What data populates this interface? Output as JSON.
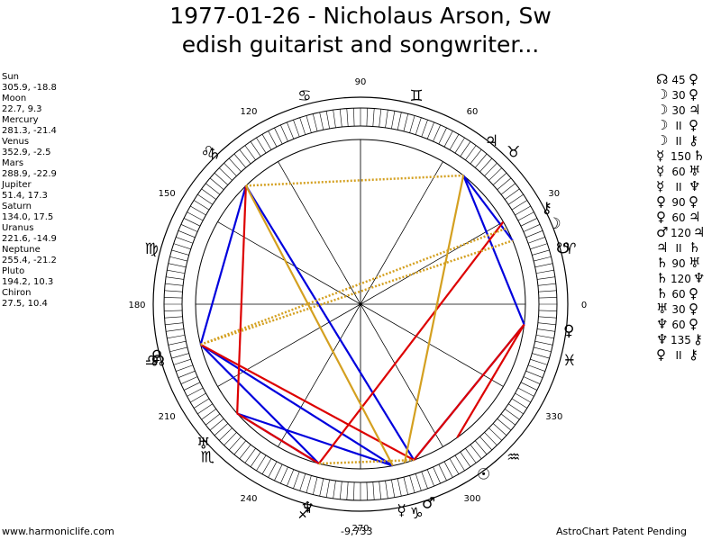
{
  "title": {
    "line1": "1977-01-26 - Nicholaus Arson, Sw",
    "line2": "edish guitarist and songwriter..."
  },
  "planet_positions": [
    {
      "name": "Sun",
      "value": "305.9, -18.8"
    },
    {
      "name": "Moon",
      "value": "22.7, 9.3"
    },
    {
      "name": "Mercury",
      "value": "281.3, -21.4"
    },
    {
      "name": "Venus",
      "value": "352.9, -2.5"
    },
    {
      "name": "Mars",
      "value": "288.9, -22.9"
    },
    {
      "name": "Jupiter",
      "value": "51.4, 17.3"
    },
    {
      "name": "Saturn",
      "value": "134.0, 17.5"
    },
    {
      "name": "Uranus",
      "value": "221.6, -14.9"
    },
    {
      "name": "Neptune",
      "value": "255.4, -21.2"
    },
    {
      "name": "Pluto",
      "value": "194.2, 10.3"
    },
    {
      "name": "Chiron",
      "value": "27.5, 10.4"
    }
  ],
  "aspects": [
    {
      "a": "☊",
      "v": "45",
      "b": "♀"
    },
    {
      "a": "☽",
      "v": "30",
      "b": "♀"
    },
    {
      "a": "☽",
      "v": "30",
      "b": "♃"
    },
    {
      "a": "☽",
      "v": "II",
      "b": "♀"
    },
    {
      "a": "☽",
      "v": "II",
      "b": "⚷"
    },
    {
      "a": "☿",
      "v": "150",
      "b": "♄"
    },
    {
      "a": "☿",
      "v": "60",
      "b": "♅"
    },
    {
      "a": "☿",
      "v": "II",
      "b": "♆"
    },
    {
      "a": "♀",
      "v": "90",
      "b": "♀"
    },
    {
      "a": "♀",
      "v": "60",
      "b": "♃"
    },
    {
      "a": "♂",
      "v": "120",
      "b": "♃"
    },
    {
      "a": "♃",
      "v": "II",
      "b": "♄"
    },
    {
      "a": "♄",
      "v": "90",
      "b": "♅"
    },
    {
      "a": "♄",
      "v": "120",
      "b": "♆"
    },
    {
      "a": "♄",
      "v": "60",
      "b": "♀"
    },
    {
      "a": "♅",
      "v": "30",
      "b": "♀"
    },
    {
      "a": "♆",
      "v": "60",
      "b": "♀"
    },
    {
      "a": "♆",
      "v": "135",
      "b": "⚷"
    },
    {
      "a": "♀",
      "v": "II",
      "b": "⚷"
    }
  ],
  "wheel": {
    "degree_labels": [
      {
        "text": "0",
        "deg": 0
      },
      {
        "text": "30",
        "deg": 30
      },
      {
        "text": "60",
        "deg": 60
      },
      {
        "text": "90",
        "deg": 90
      },
      {
        "text": "120",
        "deg": 120
      },
      {
        "text": "150",
        "deg": 150
      },
      {
        "text": "180",
        "deg": 180
      },
      {
        "text": "210",
        "deg": 210
      },
      {
        "text": "240",
        "deg": 240
      },
      {
        "text": "270",
        "deg": 270
      },
      {
        "text": "300",
        "deg": 300
      },
      {
        "text": "330",
        "deg": 330
      }
    ],
    "signs": [
      {
        "glyph": "♈",
        "deg": 15,
        "name": "aries"
      },
      {
        "glyph": "♉",
        "deg": 45,
        "name": "taurus"
      },
      {
        "glyph": "♊",
        "deg": 75,
        "name": "gemini"
      },
      {
        "glyph": "♋",
        "deg": 105,
        "name": "cancer"
      },
      {
        "glyph": "♌",
        "deg": 135,
        "name": "leo"
      },
      {
        "glyph": "♍",
        "deg": 165,
        "name": "virgo"
      },
      {
        "glyph": "♎",
        "deg": 195,
        "name": "libra"
      },
      {
        "glyph": "♏",
        "deg": 225,
        "name": "scorpio"
      },
      {
        "glyph": "♐",
        "deg": 255,
        "name": "sagittarius"
      },
      {
        "glyph": "♑",
        "deg": 285,
        "name": "capricorn"
      },
      {
        "glyph": "♒",
        "deg": 315,
        "name": "aquarius"
      },
      {
        "glyph": "♓",
        "deg": 345,
        "name": "pisces"
      }
    ],
    "planets": [
      {
        "glyph": "☉",
        "deg": 305.9,
        "name": "sun"
      },
      {
        "glyph": "☽",
        "deg": 22.7,
        "name": "moon"
      },
      {
        "glyph": "☿",
        "deg": 281.3,
        "name": "mercury"
      },
      {
        "glyph": "♀",
        "deg": 352.9,
        "name": "venus"
      },
      {
        "glyph": "♂",
        "deg": 288.9,
        "name": "mars"
      },
      {
        "glyph": "♃",
        "deg": 51.4,
        "name": "jupiter"
      },
      {
        "glyph": "♄",
        "deg": 134.0,
        "name": "saturn"
      },
      {
        "glyph": "♅",
        "deg": 221.6,
        "name": "uranus"
      },
      {
        "glyph": "♆",
        "deg": 255.4,
        "name": "neptune"
      },
      {
        "glyph": "♀",
        "deg": 194.2,
        "name": "pluto"
      },
      {
        "glyph": "⚷",
        "deg": 27.5,
        "name": "chiron"
      },
      {
        "glyph": "☊",
        "deg": 195.5,
        "name": "node"
      },
      {
        "glyph": "☋",
        "deg": 15.5,
        "name": "south-node"
      }
    ],
    "aspect_lines": [
      {
        "from": 352.9,
        "to": 288.9,
        "color": "#0000dd",
        "style": "solid"
      },
      {
        "from": 352.9,
        "to": 51.4,
        "color": "#0000dd",
        "style": "solid"
      },
      {
        "from": 22.7,
        "to": 51.4,
        "color": "#0000dd",
        "style": "solid"
      },
      {
        "from": 134.0,
        "to": 194.2,
        "color": "#0000dd",
        "style": "solid"
      },
      {
        "from": 134.0,
        "to": 288.9,
        "color": "#0000dd",
        "style": "solid"
      },
      {
        "from": 194.2,
        "to": 255.4,
        "color": "#0000dd",
        "style": "solid"
      },
      {
        "from": 194.2,
        "to": 281.3,
        "color": "#0000dd",
        "style": "solid"
      },
      {
        "from": 221.6,
        "to": 281.3,
        "color": "#0000dd",
        "style": "solid"
      },
      {
        "from": 221.6,
        "to": 255.4,
        "color": "#0000dd",
        "style": "solid"
      },
      {
        "from": 352.9,
        "to": 288.9,
        "color": "#dd0000",
        "style": "solid"
      },
      {
        "from": 134.0,
        "to": 221.6,
        "color": "#dd0000",
        "style": "solid"
      },
      {
        "from": 194.2,
        "to": 288.9,
        "color": "#dd0000",
        "style": "solid"
      },
      {
        "from": 352.9,
        "to": 305.9,
        "color": "#dd0000",
        "style": "solid"
      },
      {
        "from": 255.4,
        "to": 30.0,
        "color": "#dd0000",
        "style": "solid"
      },
      {
        "from": 221.6,
        "to": 255.4,
        "color": "#dd0000",
        "style": "solid"
      },
      {
        "from": 134.0,
        "to": 281.3,
        "color": "#d4a020",
        "style": "solid"
      },
      {
        "from": 51.4,
        "to": 285.5,
        "color": "#d4a020",
        "style": "solid"
      },
      {
        "from": 134.0,
        "to": 51.4,
        "color": "#d4a020",
        "style": "dotted"
      },
      {
        "from": 194.2,
        "to": 27.5,
        "color": "#d4a020",
        "style": "dotted"
      },
      {
        "from": 194.2,
        "to": 22.7,
        "color": "#d4a020",
        "style": "dotted"
      },
      {
        "from": 255.4,
        "to": 288.9,
        "color": "#d4a020",
        "style": "dotted"
      }
    ]
  },
  "footer": {
    "left": "www.harmoniclife.com",
    "center": "-9,733",
    "right": "AstroChart Patent Pending"
  }
}
